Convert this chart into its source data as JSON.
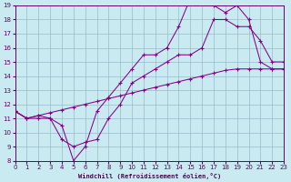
{
  "xlabel": "Windchill (Refroidissement éolien,°C)",
  "background_color": "#c8eaf0",
  "line_color": "#880088",
  "grid_color": "#99bbcc",
  "xlim": [
    0,
    23
  ],
  "ylim": [
    8,
    19
  ],
  "xticks": [
    0,
    1,
    2,
    3,
    4,
    5,
    6,
    7,
    8,
    9,
    10,
    11,
    12,
    13,
    14,
    15,
    16,
    17,
    18,
    19,
    20,
    21,
    22,
    23
  ],
  "yticks": [
    8,
    9,
    10,
    11,
    12,
    13,
    14,
    15,
    16,
    17,
    18,
    19
  ],
  "line1": {
    "x": [
      0,
      1,
      2,
      3,
      4,
      5,
      6,
      7,
      8,
      9,
      10,
      11,
      12,
      13,
      14,
      15,
      16,
      17,
      18,
      19,
      20,
      21,
      22,
      23
    ],
    "y": [
      11.5,
      11.0,
      11.2,
      11.4,
      11.6,
      11.8,
      12.0,
      12.2,
      12.4,
      12.6,
      12.8,
      13.0,
      13.2,
      13.4,
      13.6,
      13.8,
      14.0,
      14.2,
      14.4,
      14.5,
      14.5,
      14.5,
      14.5,
      14.5
    ]
  },
  "line2": {
    "x": [
      0,
      1,
      2,
      3,
      4,
      5,
      6,
      7,
      8,
      9,
      10,
      11,
      12,
      13,
      14,
      15,
      16,
      17,
      18,
      19,
      20,
      21,
      22,
      23
    ],
    "y": [
      11.5,
      11.0,
      11.0,
      11.0,
      10.5,
      8.0,
      9.0,
      11.5,
      12.5,
      13.5,
      14.5,
      15.5,
      15.5,
      16.0,
      17.5,
      19.5,
      19.5,
      19.0,
      18.5,
      19.0,
      18.0,
      15.0,
      14.5,
      14.5
    ]
  },
  "line3": {
    "x": [
      0,
      1,
      2,
      3,
      4,
      5,
      6,
      7,
      8,
      9,
      10,
      11,
      12,
      13,
      14,
      15,
      16,
      17,
      18,
      19,
      20,
      21,
      22,
      23
    ],
    "y": [
      11.5,
      11.0,
      11.2,
      11.0,
      9.5,
      9.0,
      9.3,
      9.5,
      11.0,
      12.0,
      13.5,
      14.0,
      14.5,
      15.0,
      15.5,
      15.5,
      16.0,
      18.0,
      18.0,
      17.5,
      17.5,
      16.5,
      15.0,
      15.0
    ]
  }
}
